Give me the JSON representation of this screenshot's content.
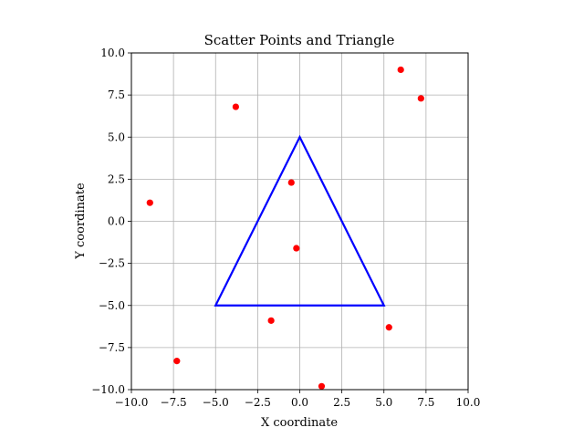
{
  "chart_data": {
    "type": "scatter",
    "title": "Scatter Points and Triangle",
    "xlabel": "X coordinate",
    "ylabel": "Y coordinate",
    "xlim": [
      -10,
      10
    ],
    "ylim": [
      -10,
      10
    ],
    "xticks": [
      -10,
      -7.5,
      -5,
      -2.5,
      0,
      2.5,
      5,
      7.5,
      10
    ],
    "yticks": [
      -10,
      -7.5,
      -5,
      -2.5,
      0,
      2.5,
      5,
      7.5,
      10
    ],
    "xtick_labels": [
      "−10.0",
      "−7.5",
      "−5.0",
      "−2.5",
      "0.0",
      "2.5",
      "5.0",
      "7.5",
      "10.0"
    ],
    "ytick_labels": [
      "−10.0",
      "−7.5",
      "−5.0",
      "−2.5",
      "0.0",
      "2.5",
      "5.0",
      "7.5",
      "10.0"
    ],
    "grid": true,
    "series": [
      {
        "kind": "scatter",
        "color": "#ff0000",
        "points": [
          {
            "x": 6.0,
            "y": 9.0
          },
          {
            "x": 7.2,
            "y": 7.3
          },
          {
            "x": -3.8,
            "y": 6.8
          },
          {
            "x": -0.5,
            "y": 2.3
          },
          {
            "x": -8.9,
            "y": 1.1
          },
          {
            "x": -0.2,
            "y": -1.6
          },
          {
            "x": -1.7,
            "y": -5.9
          },
          {
            "x": 5.3,
            "y": -6.3
          },
          {
            "x": -7.3,
            "y": -8.3
          },
          {
            "x": 1.3,
            "y": -9.8
          }
        ]
      },
      {
        "kind": "polygon",
        "color": "#0000ff",
        "vertices": [
          {
            "x": -5,
            "y": -5
          },
          {
            "x": 5,
            "y": -5
          },
          {
            "x": 0,
            "y": 5
          }
        ]
      }
    ]
  }
}
